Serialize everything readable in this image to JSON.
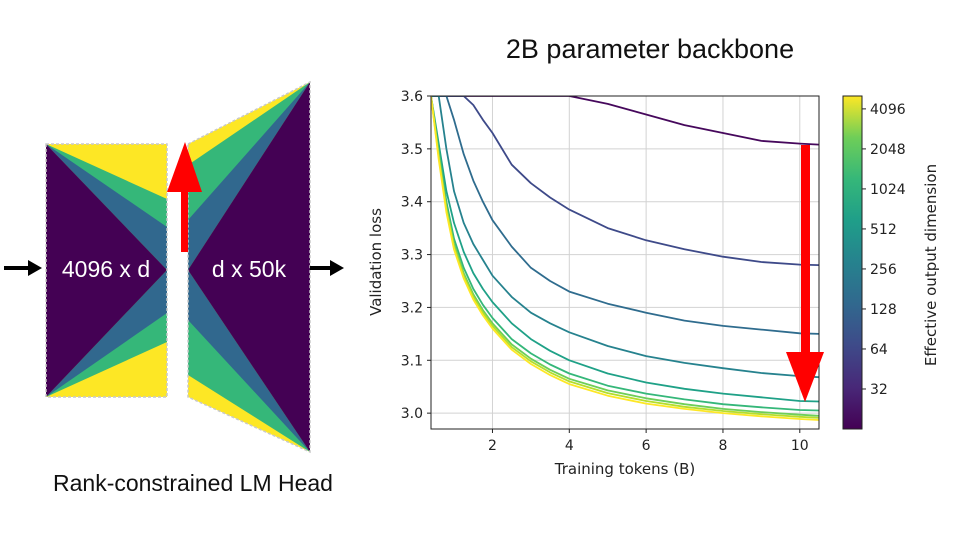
{
  "diagram": {
    "left_label": "4096 x d",
    "right_label": "d x 50k",
    "caption": "Rank-constrained LM Head"
  },
  "colors": {
    "purple": "#440154",
    "blue": "#31688e",
    "green": "#35b779",
    "yellow": "#fde725",
    "arrow_red": "#ff0000"
  },
  "chart_data": {
    "type": "line",
    "title": "2B parameter backbone",
    "xlabel": "Training tokens (B)",
    "ylabel": "Validation loss",
    "xlim": [
      0.4,
      10.5
    ],
    "ylim": [
      2.97,
      3.6
    ],
    "xticks": [
      2,
      4,
      6,
      8,
      10
    ],
    "yticks": [
      3.0,
      3.1,
      3.2,
      3.3,
      3.4,
      3.5,
      3.6
    ],
    "grid": true,
    "colorbar": {
      "label": "Effective output dimension",
      "ticks": [
        32,
        64,
        128,
        256,
        512,
        1024,
        2048,
        4096
      ],
      "range": [
        16,
        5120
      ],
      "scale": "log2"
    },
    "x": [
      0.4,
      0.6,
      0.8,
      1.0,
      1.25,
      1.5,
      1.75,
      2.0,
      2.5,
      3.0,
      3.5,
      4.0,
      5.0,
      6.0,
      7.0,
      8.0,
      9.0,
      10.0,
      10.5
    ],
    "series": [
      {
        "name": "16",
        "color": "#46085c",
        "values": [
          3.6,
          3.6,
          3.6,
          3.6,
          3.6,
          3.6,
          3.6,
          3.6,
          3.6,
          3.6,
          3.6,
          3.6,
          3.585,
          3.565,
          3.545,
          3.53,
          3.515,
          3.51,
          3.508
        ]
      },
      {
        "name": "32",
        "color": "#3e4a89",
        "values": [
          3.6,
          3.6,
          3.6,
          3.6,
          3.6,
          3.583,
          3.555,
          3.53,
          3.47,
          3.435,
          3.408,
          3.385,
          3.35,
          3.327,
          3.31,
          3.296,
          3.286,
          3.281,
          3.28
        ]
      },
      {
        "name": "64",
        "color": "#2f6c8e",
        "values": [
          3.6,
          3.6,
          3.6,
          3.555,
          3.49,
          3.44,
          3.4,
          3.365,
          3.315,
          3.275,
          3.25,
          3.23,
          3.207,
          3.19,
          3.175,
          3.165,
          3.158,
          3.151,
          3.15
        ]
      },
      {
        "name": "128",
        "color": "#26828e",
        "values": [
          3.6,
          3.6,
          3.5,
          3.42,
          3.36,
          3.32,
          3.29,
          3.26,
          3.22,
          3.19,
          3.17,
          3.153,
          3.127,
          3.108,
          3.095,
          3.085,
          3.076,
          3.07,
          3.068
        ]
      },
      {
        "name": "256",
        "color": "#1fa187",
        "values": [
          3.6,
          3.51,
          3.42,
          3.36,
          3.305,
          3.265,
          3.235,
          3.21,
          3.17,
          3.14,
          3.118,
          3.1,
          3.075,
          3.058,
          3.046,
          3.037,
          3.03,
          3.023,
          3.022
        ]
      },
      {
        "name": "512",
        "color": "#35b779",
        "values": [
          3.6,
          3.5,
          3.4,
          3.33,
          3.275,
          3.235,
          3.205,
          3.18,
          3.14,
          3.113,
          3.092,
          3.075,
          3.052,
          3.037,
          3.026,
          3.017,
          3.011,
          3.006,
          3.005
        ]
      },
      {
        "name": "1024",
        "color": "#6ece58",
        "values": [
          3.6,
          3.49,
          3.39,
          3.32,
          3.265,
          3.225,
          3.195,
          3.17,
          3.13,
          3.103,
          3.082,
          3.065,
          3.043,
          3.028,
          3.017,
          3.008,
          3.002,
          2.997,
          2.995
        ]
      },
      {
        "name": "2048",
        "color": "#b5de2b",
        "values": [
          3.6,
          3.485,
          3.385,
          3.315,
          3.26,
          3.22,
          3.19,
          3.165,
          3.125,
          3.098,
          3.077,
          3.06,
          3.038,
          3.023,
          3.012,
          3.004,
          2.998,
          2.993,
          2.991
        ]
      },
      {
        "name": "4096",
        "color": "#fde725",
        "values": [
          3.6,
          3.48,
          3.38,
          3.31,
          3.255,
          3.215,
          3.185,
          3.16,
          3.12,
          3.093,
          3.072,
          3.055,
          3.033,
          3.018,
          3.008,
          3.0,
          2.994,
          2.989,
          2.987
        ]
      }
    ]
  }
}
